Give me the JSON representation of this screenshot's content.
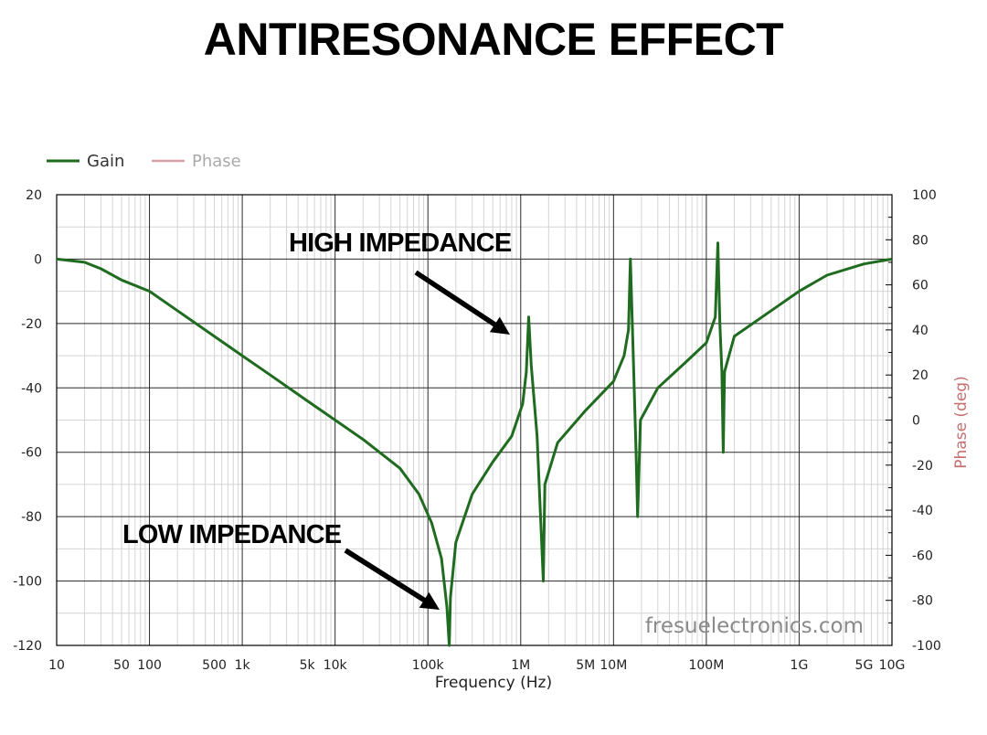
{
  "title": "ANTIRESONANCE EFFECT",
  "watermark": "fresuelectronics.com",
  "chart_data": {
    "type": "line",
    "xlabel": "Frequency (Hz)",
    "ylabel_right": "Phase (deg)",
    "x_scale": "log",
    "xlim": [
      10,
      10000000000
    ],
    "ylim": [
      -120,
      20
    ],
    "ylim_right": [
      -100,
      100
    ],
    "grid": true,
    "legend_placement": "top-left",
    "x_ticks": [
      {
        "value": 10,
        "label": "10"
      },
      {
        "value": 50,
        "label": "50"
      },
      {
        "value": 100,
        "label": "100"
      },
      {
        "value": 500,
        "label": "500"
      },
      {
        "value": 1000,
        "label": "1k"
      },
      {
        "value": 5000,
        "label": "5k"
      },
      {
        "value": 10000,
        "label": "10k"
      },
      {
        "value": 100000,
        "label": "100k"
      },
      {
        "value": 1000000,
        "label": "1M"
      },
      {
        "value": 5000000,
        "label": "5M"
      },
      {
        "value": 10000000,
        "label": "10M"
      },
      {
        "value": 100000000,
        "label": "100M"
      },
      {
        "value": 1000000000,
        "label": "1G"
      },
      {
        "value": 5000000000,
        "label": "5G"
      },
      {
        "value": 10000000000,
        "label": "10G"
      }
    ],
    "y_ticks": [
      20,
      0,
      -20,
      -40,
      -60,
      -80,
      -100,
      -120
    ],
    "y_ticks_right": [
      100,
      80,
      60,
      40,
      20,
      0,
      -20,
      -40,
      -60,
      -80,
      -100
    ],
    "legend": [
      {
        "name": "Gain",
        "color": "#1f6b1f"
      },
      {
        "name": "Phase",
        "color": "#d9a0aa"
      }
    ],
    "series": [
      {
        "name": "Gain",
        "color": "#1f6b1f",
        "points": [
          [
            10,
            0
          ],
          [
            20,
            -1
          ],
          [
            30,
            -3
          ],
          [
            50,
            -6.5
          ],
          [
            100,
            -10
          ],
          [
            200,
            -16
          ],
          [
            500,
            -24
          ],
          [
            1000,
            -30
          ],
          [
            2000,
            -36
          ],
          [
            5000,
            -44
          ],
          [
            10000,
            -50
          ],
          [
            20000,
            -56
          ],
          [
            50000,
            -65
          ],
          [
            80000,
            -73
          ],
          [
            110000,
            -82
          ],
          [
            140000,
            -93
          ],
          [
            160000,
            -108
          ],
          [
            170000,
            -120
          ],
          [
            175000,
            -105
          ],
          [
            200000,
            -88
          ],
          [
            300000,
            -73
          ],
          [
            500000,
            -63
          ],
          [
            800000,
            -55
          ],
          [
            1050000,
            -45
          ],
          [
            1150000,
            -35
          ],
          [
            1220000,
            -18
          ],
          [
            1300000,
            -33
          ],
          [
            1500000,
            -55
          ],
          [
            1750000,
            -100
          ],
          [
            1820000,
            -70
          ],
          [
            2500000,
            -57
          ],
          [
            5000000,
            -47
          ],
          [
            10000000,
            -38
          ],
          [
            13000000,
            -30
          ],
          [
            14500000,
            -22
          ],
          [
            15200000,
            0
          ],
          [
            16000000,
            -22
          ],
          [
            17500000,
            -60
          ],
          [
            18200000,
            -80
          ],
          [
            19500000,
            -50
          ],
          [
            30000000,
            -40
          ],
          [
            60000000,
            -32
          ],
          [
            100000000,
            -26
          ],
          [
            125000000,
            -18
          ],
          [
            133000000,
            5
          ],
          [
            140000000,
            -20
          ],
          [
            147000000,
            -35
          ],
          [
            152000000,
            -60
          ],
          [
            157000000,
            -35
          ],
          [
            200000000,
            -24
          ],
          [
            500000000,
            -16
          ],
          [
            1000000000,
            -10
          ],
          [
            2000000000,
            -5
          ],
          [
            5000000000,
            -1.5
          ],
          [
            10000000000,
            0
          ]
        ]
      },
      {
        "name": "Phase",
        "color": "#d9a0aa",
        "points": []
      }
    ],
    "annotations": [
      {
        "text": "HIGH IMPEDANCE",
        "target": [
          1220000,
          -18
        ]
      },
      {
        "text": "LOW IMPEDANCE",
        "target": [
          170000,
          -120
        ]
      }
    ]
  }
}
